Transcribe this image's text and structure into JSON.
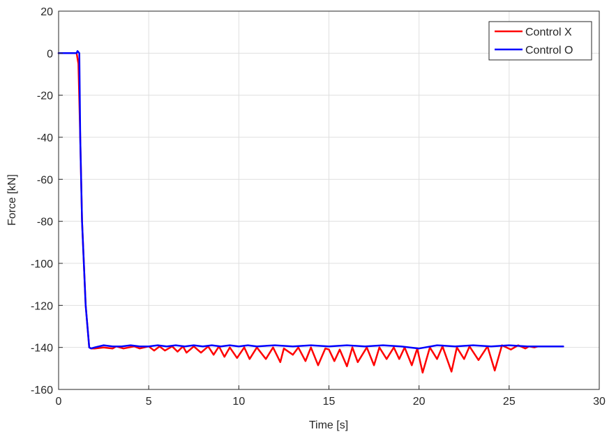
{
  "chart_data": {
    "type": "line",
    "title": "",
    "xlabel": "Time [s]",
    "ylabel": "Force [kN]",
    "xlim": [
      0,
      30
    ],
    "ylim": [
      -160,
      20
    ],
    "xticks": [
      0,
      5,
      10,
      15,
      20,
      25,
      30
    ],
    "yticks": [
      -160,
      -140,
      -120,
      -100,
      -80,
      -60,
      -40,
      -20,
      0,
      20
    ],
    "grid": true,
    "legend_position": "top-right",
    "series": [
      {
        "name": "Control X",
        "color": "#ff0000",
        "x": [
          0,
          1,
          1.1,
          1.2,
          1.3,
          1.5,
          1.7,
          1.8,
          2.0,
          2.5,
          3.0,
          3.2,
          3.6,
          4.2,
          4.5,
          5.0,
          5.3,
          5.6,
          5.9,
          6.3,
          6.6,
          6.9,
          7.1,
          7.5,
          7.9,
          8.3,
          8.6,
          8.9,
          9.2,
          9.5,
          9.9,
          10.3,
          10.6,
          11.0,
          11.5,
          11.9,
          12.3,
          12.5,
          13.0,
          13.3,
          13.7,
          14.0,
          14.4,
          14.8,
          15.0,
          15.3,
          15.6,
          16.0,
          16.3,
          16.6,
          17.1,
          17.5,
          17.8,
          18.2,
          18.6,
          18.9,
          19.2,
          19.6,
          19.9,
          20.2,
          20.6,
          21.0,
          21.3,
          21.8,
          22.1,
          22.5,
          22.8,
          23.3,
          23.8,
          24.2,
          24.6,
          25.1,
          25.5,
          25.9,
          26.1,
          26.4,
          26.6,
          27.0,
          28.0
        ],
        "y": [
          0,
          0,
          -5,
          -40,
          -80,
          -120,
          -140,
          -140.5,
          -140.5,
          -140,
          -140.5,
          -139.5,
          -140.5,
          -139.5,
          -140.5,
          -139.5,
          -141.5,
          -139.5,
          -141.5,
          -139.5,
          -142,
          -139.5,
          -142.5,
          -139.5,
          -142.5,
          -139.5,
          -143.5,
          -139.5,
          -144.5,
          -140,
          -145,
          -140,
          -145.5,
          -140,
          -145.5,
          -140,
          -147,
          -140.5,
          -143.5,
          -140,
          -146.5,
          -140,
          -148.5,
          -140.5,
          -141,
          -146.5,
          -141,
          -149,
          -140,
          -147,
          -140,
          -148.5,
          -140,
          -145.5,
          -140,
          -145.5,
          -140,
          -148.5,
          -140.5,
          -152,
          -140,
          -145.5,
          -139.5,
          -151.5,
          -140,
          -145.5,
          -139.5,
          -146,
          -139.5,
          -151,
          -139,
          -141,
          -139,
          -140.5,
          -139.5,
          -140,
          -139.5,
          -139.5,
          -139.5
        ]
      },
      {
        "name": "Control O",
        "color": "#0000ff",
        "x": [
          0,
          1,
          1.05,
          1.15,
          1.2,
          1.3,
          1.5,
          1.7,
          1.8,
          2.0,
          2.5,
          3.0,
          3.5,
          4.0,
          4.5,
          5.0,
          5.5,
          6.0,
          6.5,
          7.0,
          7.5,
          8.0,
          8.5,
          9.0,
          9.5,
          10.0,
          10.5,
          11.0,
          12.0,
          13.0,
          14.0,
          15.0,
          16.0,
          17.0,
          18.0,
          19.0,
          20.0,
          21.0,
          22.0,
          23.0,
          24.0,
          25.0,
          26.0,
          27.0,
          28.0
        ],
        "y": [
          0,
          0,
          1,
          0,
          -40,
          -80,
          -120,
          -140,
          -140.5,
          -140,
          -139,
          -139.5,
          -139.5,
          -139,
          -139.5,
          -139.5,
          -139,
          -139.5,
          -139,
          -139.5,
          -139,
          -139.5,
          -139,
          -139.5,
          -139,
          -139.5,
          -139,
          -139.5,
          -139,
          -139.5,
          -139,
          -139.5,
          -139,
          -139.5,
          -139,
          -139.5,
          -140.5,
          -139,
          -139.5,
          -139,
          -139.5,
          -139,
          -139.5,
          -139.5,
          -139.5
        ]
      }
    ]
  }
}
